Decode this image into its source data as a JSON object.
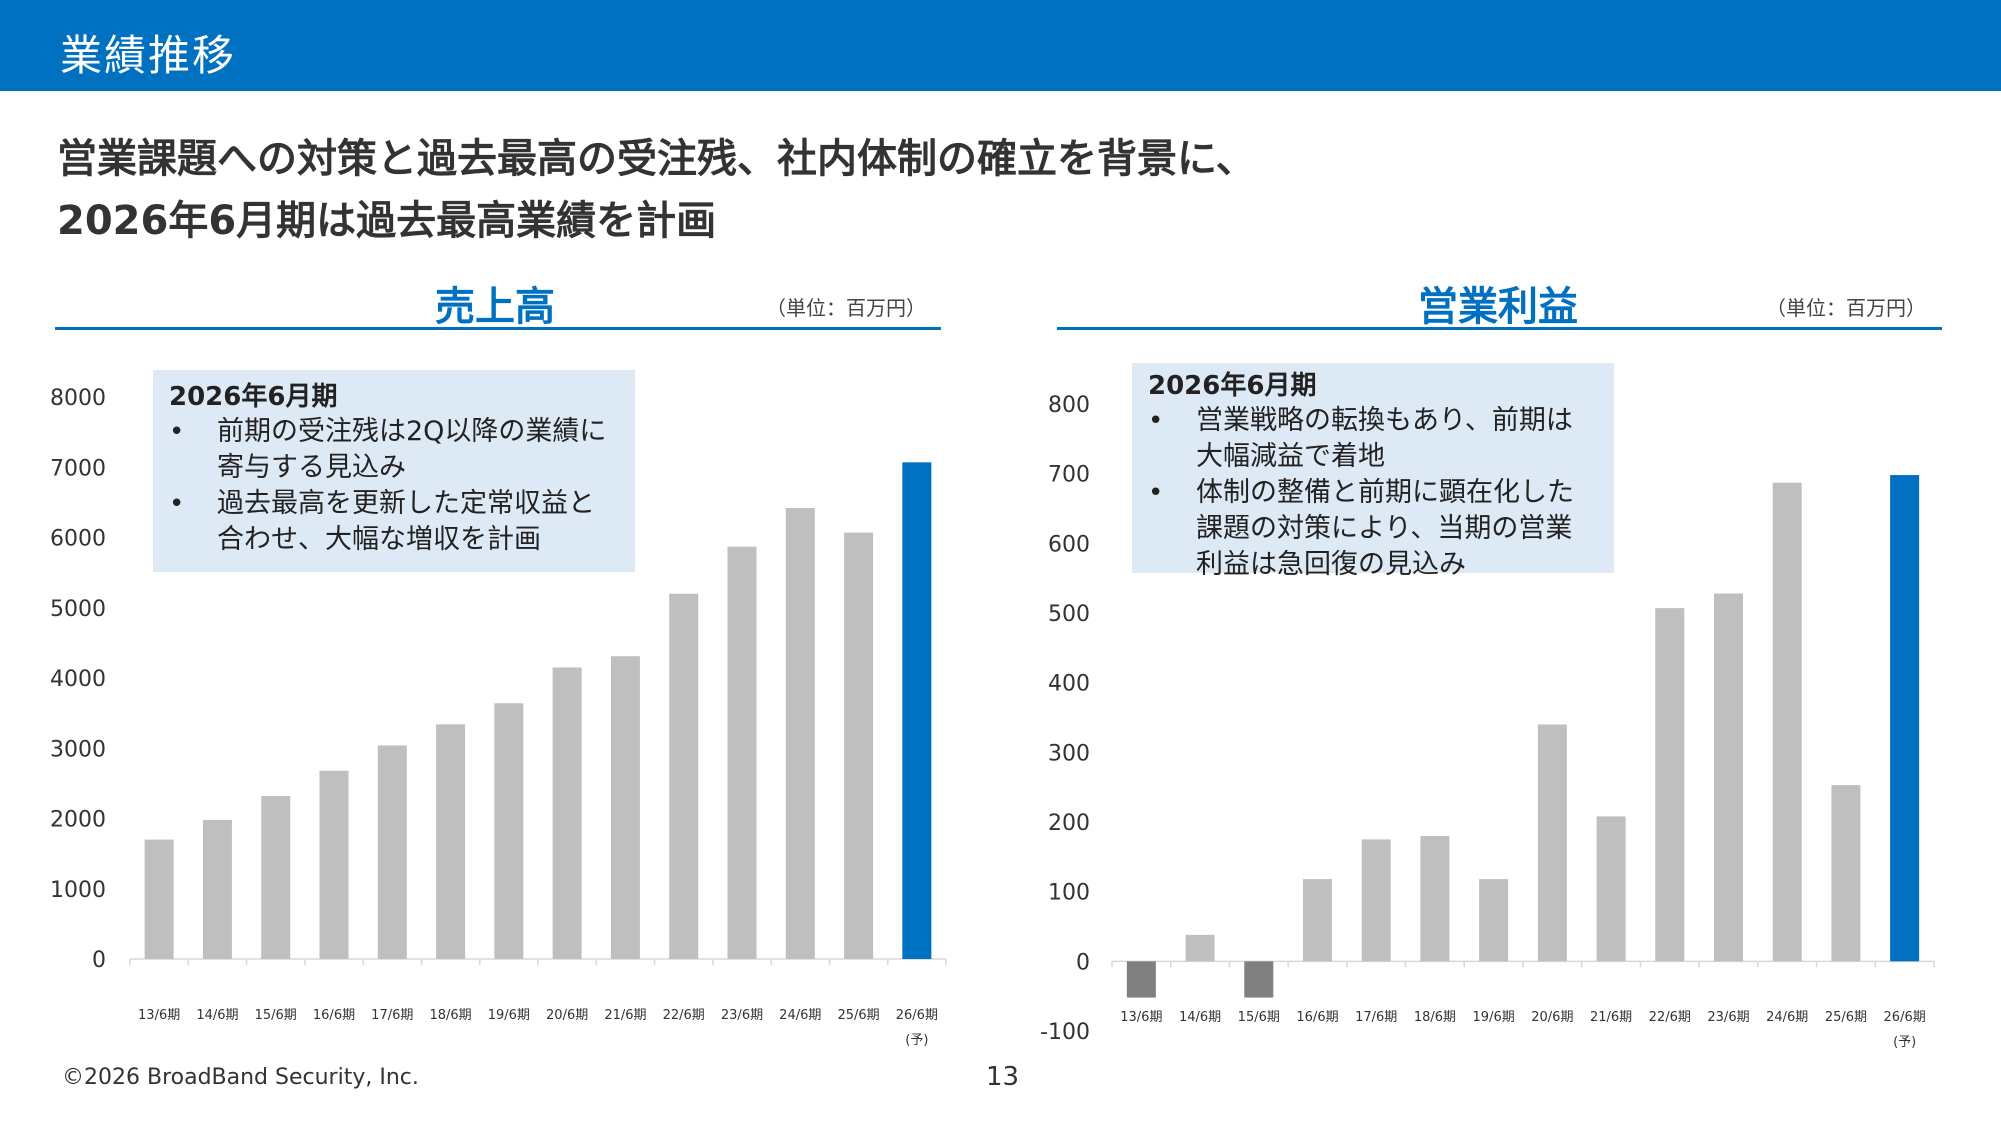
{
  "header": {
    "title": "業績推移"
  },
  "headline": {
    "line1": "営業課題への対策と過去最高の受注残、社内体制の確立を背景に、",
    "line2": "2026年6月期は過去最高業績を計画"
  },
  "colors": {
    "accent": "#0070c0",
    "bar": "#bfbfbf",
    "negative_bar": "#808080",
    "note_bg": "#ddeaf6"
  },
  "sales_panel": {
    "title": "売上高",
    "unit": "（単位：百万円）",
    "note": {
      "heading": "2026年6月期",
      "bullets": [
        "前期の受注残は2Q以降の業績に寄与する見込み",
        "過去最高を更新した定常収益と合わせ、大幅な増収を計画"
      ]
    }
  },
  "profit_panel": {
    "title": "営業利益",
    "unit": "（単位：百万円）",
    "note": {
      "heading": "2026年6月期",
      "bullets": [
        "営業戦略の転換もあり、前期は大幅減益で着地",
        "体制の整備と前期に顕在化した課題の対策により、当期の営業利益は急回復の見込み"
      ]
    }
  },
  "chart_data": [
    {
      "type": "bar",
      "title": "売上高",
      "categories": [
        "13/6期",
        "14/6期",
        "15/6期",
        "16/6期",
        "17/6期",
        "18/6期",
        "19/6期",
        "20/6期",
        "21/6期",
        "22/6期",
        "23/6期",
        "24/6期",
        "25/6期",
        "26/6期"
      ],
      "category_note": "(予)",
      "values": [
        1700,
        1980,
        2320,
        2680,
        3040,
        3340,
        3640,
        4150,
        4310,
        5200,
        5870,
        6420,
        6070,
        7070
      ],
      "highlight_index": 13,
      "ylim": [
        0,
        8000
      ],
      "yticks": [
        0,
        1000,
        2000,
        3000,
        4000,
        5000,
        6000,
        7000,
        8000
      ],
      "xlabel": "",
      "ylabel": ""
    },
    {
      "type": "bar",
      "title": "営業利益",
      "categories": [
        "13/6期",
        "14/6期",
        "15/6期",
        "16/6期",
        "17/6期",
        "18/6期",
        "19/6期",
        "20/6期",
        "21/6期",
        "22/6期",
        "23/6期",
        "24/6期",
        "25/6期",
        "26/6期"
      ],
      "category_note": "(予)",
      "values": [
        -52,
        38,
        -52,
        118,
        175,
        180,
        118,
        340,
        208,
        507,
        528,
        687,
        253,
        698
      ],
      "highlight_index": 13,
      "ylim": [
        -100,
        800
      ],
      "yticks": [
        -100,
        0,
        100,
        200,
        300,
        400,
        500,
        600,
        700,
        800
      ],
      "xlabel": "",
      "ylabel": ""
    }
  ],
  "footer": {
    "copyright": "©2026 BroadBand Security, Inc.",
    "page_number": "13"
  }
}
